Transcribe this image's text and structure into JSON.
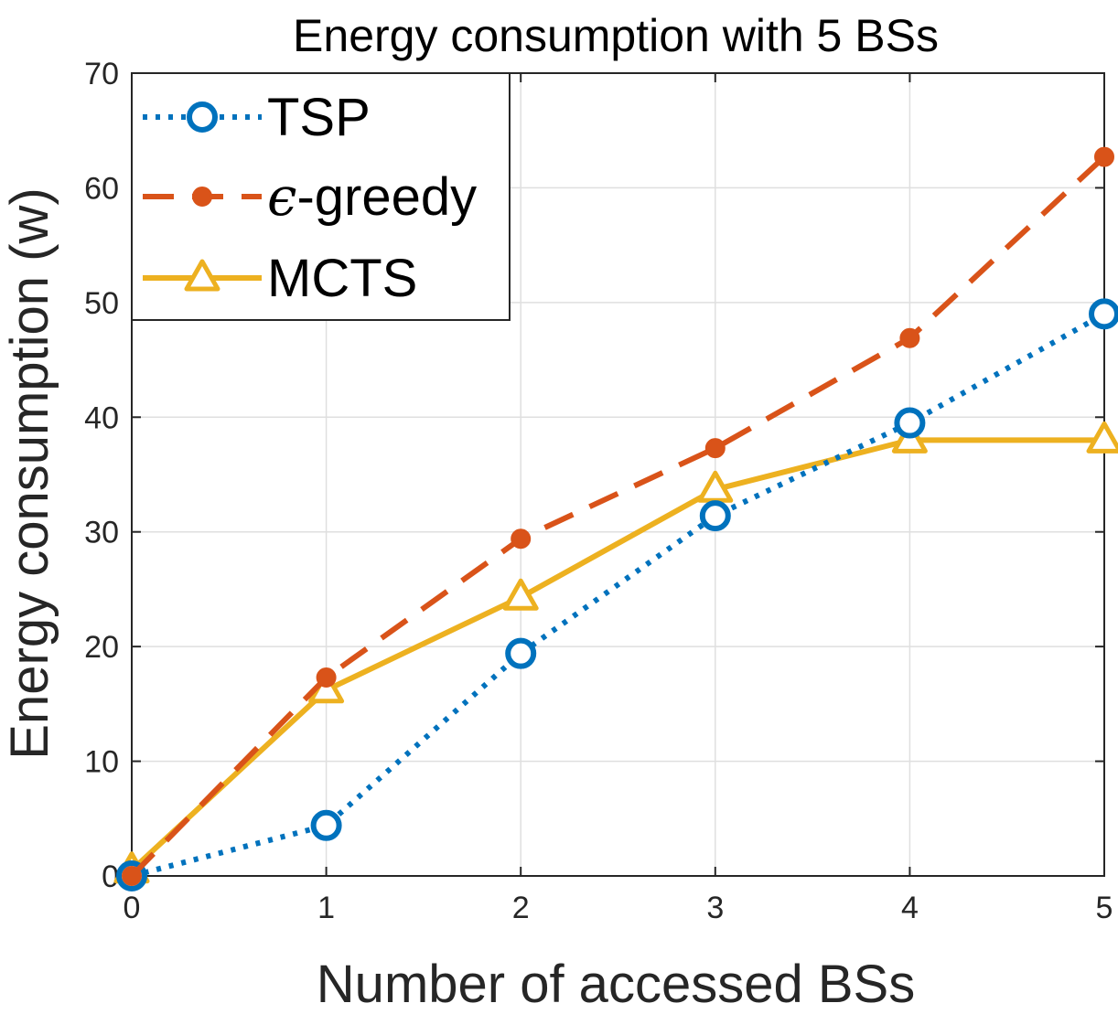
{
  "chart_data": {
    "type": "line",
    "title": "Energy consumption with 5 BSs",
    "xlabel": "Number of accessed BSs",
    "ylabel": "Energy consumption (w)",
    "xlim": [
      0,
      5
    ],
    "ylim": [
      0,
      70
    ],
    "xticks": [
      0,
      1,
      2,
      3,
      4,
      5
    ],
    "yticks": [
      0,
      10,
      20,
      30,
      40,
      50,
      60,
      70
    ],
    "grid": true,
    "legend_location": "top-left",
    "x": [
      0,
      1,
      2,
      3,
      4,
      5
    ],
    "series": [
      {
        "name": "TSP",
        "legend_prefix": "",
        "legend_text": "TSP",
        "values": [
          0,
          4.4,
          19.4,
          31.4,
          39.5,
          49.0
        ],
        "color": "#0072BD",
        "line_style": "dotted",
        "marker": "circle-open"
      },
      {
        "name": "ε-greedy",
        "legend_prefix": "ϵ",
        "legend_text": "-greedy",
        "values": [
          0,
          17.3,
          29.4,
          37.3,
          46.9,
          62.7
        ],
        "color": "#D95319",
        "line_style": "dashed",
        "marker": "circle-filled"
      },
      {
        "name": "MCTS",
        "legend_prefix": "",
        "legend_text": "MCTS",
        "values": [
          0.5,
          16.2,
          24.3,
          33.7,
          38.0,
          38.0
        ],
        "color": "#EDB120",
        "line_style": "solid",
        "marker": "triangle-open"
      }
    ]
  }
}
